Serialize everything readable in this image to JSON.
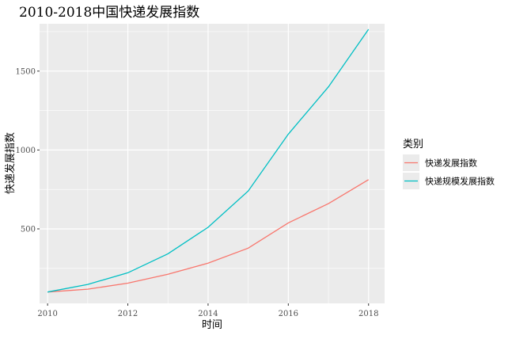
{
  "chart_data": {
    "type": "line",
    "title": "2010-2018中国快递发展指数",
    "xlabel": "时间",
    "ylabel": "快递发展指数",
    "x": [
      2010,
      2011,
      2012,
      2013,
      2014,
      2015,
      2016,
      2017,
      2018
    ],
    "x_ticks": [
      2010,
      2012,
      2014,
      2016,
      2018
    ],
    "y_ticks": [
      500,
      1000,
      1500
    ],
    "xlim": [
      2009.8,
      2018.4
    ],
    "ylim": [
      28,
      1800
    ],
    "grid": true,
    "legend": {
      "title": "类别",
      "position": "right"
    },
    "series": [
      {
        "name": "快递发展指数",
        "color": "#F8766D",
        "values": [
          100,
          118,
          156,
          212,
          283,
          378,
          538,
          660,
          812
        ]
      },
      {
        "name": "快递规模发展指数",
        "color": "#00BFC4",
        "values": [
          100,
          148,
          222,
          342,
          510,
          740,
          1100,
          1400,
          1765
        ]
      }
    ]
  }
}
